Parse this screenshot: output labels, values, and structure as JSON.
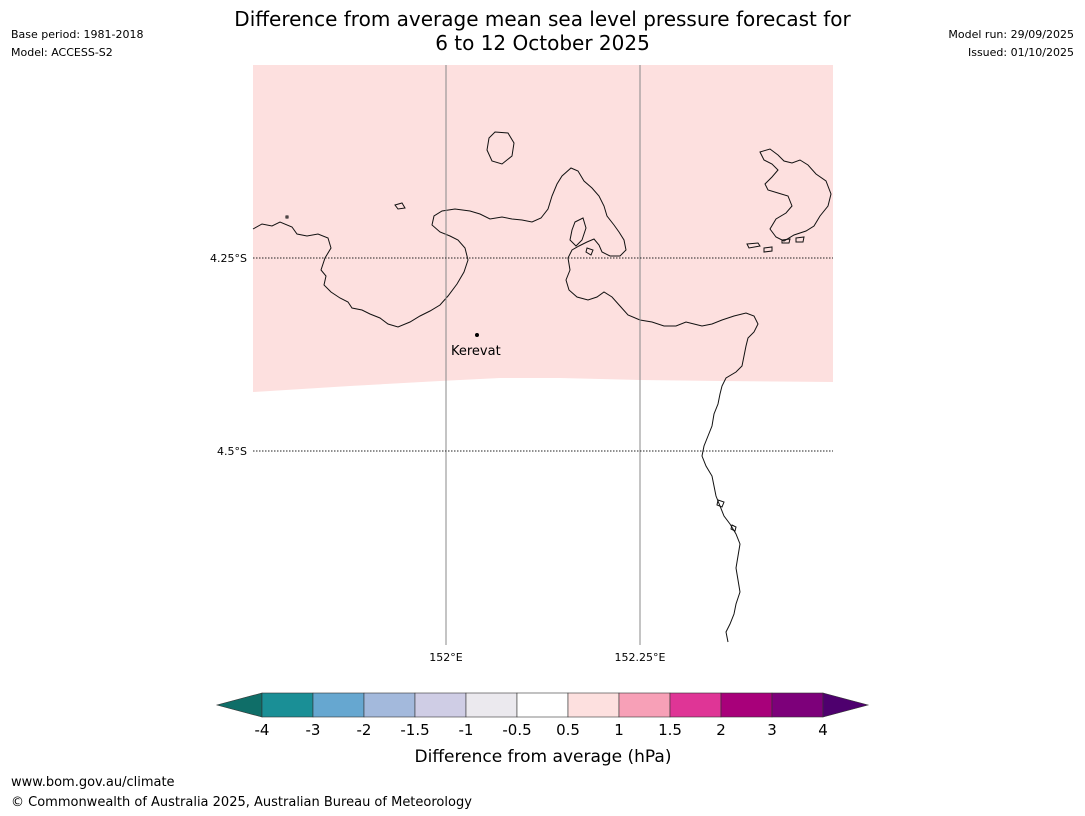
{
  "header": {
    "title_line1": "Difference from average mean sea level pressure forecast for",
    "title_line2": "6 to 12 October 2025",
    "base_period": "Base period: 1981-2018",
    "model": "Model: ACCESS-S2",
    "model_run": "Model run: 29/09/2025",
    "issued": "Issued: 01/10/2025"
  },
  "map": {
    "lat_labels": [
      "4.25°S",
      "4.5°S"
    ],
    "lon_labels": [
      "152°E",
      "152.25°E"
    ],
    "place": "Kerevat",
    "anomaly_fill": "#fde0df"
  },
  "colorbar": {
    "ticks": [
      "-4",
      "-3",
      "-2",
      "-1.5",
      "-1",
      "-0.5",
      "0.5",
      "1",
      "1.5",
      "2",
      "3",
      "4"
    ],
    "colors": [
      "#0f6e68",
      "#1a8f96",
      "#66a7d0",
      "#a3b9dc",
      "#cfcde5",
      "#ebe9ee",
      "#ffffff",
      "#fde0df",
      "#f7a0b7",
      "#df3596",
      "#a8007a",
      "#7d007a",
      "#4e006e"
    ],
    "label": "Difference from average (hPa)"
  },
  "footer": {
    "url": "www.bom.gov.au/climate",
    "copyright": "© Commonwealth of Australia 2025, Australian Bureau of Meteorology"
  }
}
